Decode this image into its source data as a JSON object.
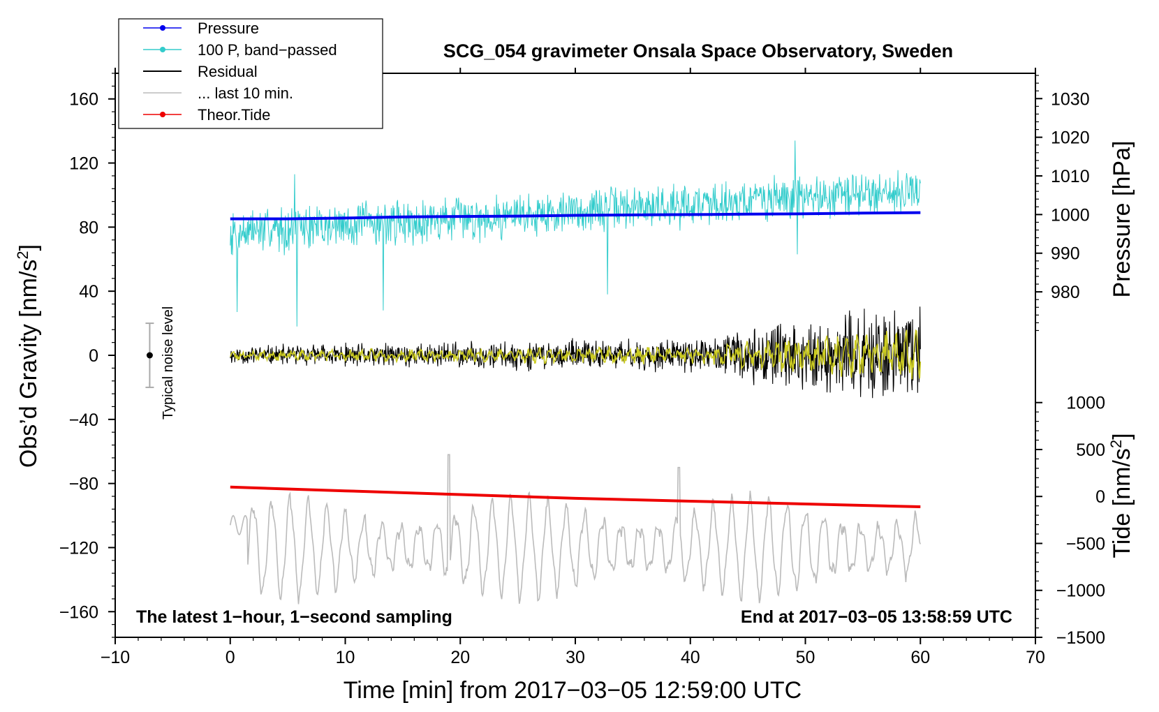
{
  "chart_data": {
    "type": "line",
    "title": "SCG_054 gravimeter Onsala Space Observatory, Sweden",
    "xlabel": "Time [min] from 2017−03−05 12:59:00 UTC",
    "ylabel_left": "Obs’d Gravity [nm/s²]",
    "ylabel_right_top": "Pressure [hPa]",
    "ylabel_right_bottom": "Tide [nm/s²]",
    "annotation_left": "The latest 1−hour, 1−second sampling",
    "annotation_right": "End at 2017−03−05 13:58:59 UTC",
    "noise_label": "Typical noise level",
    "noise_level": {
      "x": -7,
      "center": 0,
      "half_range": 20
    },
    "xlim": [
      -10,
      70
    ],
    "ylim_left": [
      -176,
      176
    ],
    "x_ticks": [
      -10,
      0,
      10,
      20,
      30,
      40,
      50,
      60,
      70
    ],
    "x_tick_labels": [
      "−10",
      "0",
      "10",
      "20",
      "30",
      "40",
      "50",
      "60",
      "70"
    ],
    "y_left_ticks": [
      -160,
      -120,
      -80,
      -40,
      0,
      40,
      80,
      120,
      160
    ],
    "y_left_tick_labels": [
      "−160",
      "−120",
      "−80",
      "−40",
      "0",
      "40",
      "80",
      "120",
      "160"
    ],
    "pressure_axis": {
      "ticks": [
        980,
        990,
        1000,
        1010,
        1020,
        1030
      ],
      "tick_labels": [
        "980",
        "990",
        "1000",
        "1010",
        "1020",
        "1030"
      ],
      "left_equivalent": {
        "hpa_a": 980,
        "gravity_a": 39.6,
        "hpa_b": 1030,
        "gravity_b": 160.2
      }
    },
    "tide_axis": {
      "ticks": [
        -1500,
        -1000,
        -500,
        0,
        500,
        1000
      ],
      "tick_labels": [
        "−1500",
        "−1000",
        "−500",
        "0",
        "500",
        "1000"
      ],
      "left_equivalent": {
        "tide_a": -1500,
        "gravity_a": -176,
        "tide_b": 1000,
        "gravity_b": -29.5
      }
    },
    "legend": [
      {
        "label": "Pressure",
        "color": "#0000ee",
        "marker": true
      },
      {
        "label": "100 P, band−passed",
        "color": "#33cccc",
        "marker": true
      },
      {
        "label": "Residual",
        "color": "#000000",
        "marker": false
      },
      {
        "label": "... last 10 min.",
        "color": "#bbbbbb",
        "marker": false
      },
      {
        "label": "Theor.Tide",
        "color": "#ee0000",
        "marker": true
      }
    ],
    "series": [
      {
        "name": "Pressure",
        "axis": "pressure_hpa",
        "color": "#0000ee",
        "x": [
          0,
          5,
          10,
          15,
          20,
          25,
          30,
          35,
          40,
          45,
          50,
          55,
          60
        ],
        "values": [
          998.9,
          998.9,
          999.1,
          999.4,
          999.5,
          999.6,
          999.8,
          999.9,
          1000.0,
          1000.1,
          1000.2,
          1000.4,
          1000.5
        ]
      },
      {
        "name": "Theor.Tide",
        "axis": "tide_nm_s2",
        "color": "#ee0000",
        "x": [
          0,
          10,
          20,
          30,
          40,
          50,
          60
        ],
        "values": [
          100,
          60,
          20,
          -20,
          -50,
          -80,
          -110
        ]
      },
      {
        "name": "100 P, band−passed",
        "axis": "gravity",
        "color": "#33cccc",
        "baseline": 77,
        "baseline_end": 103,
        "noise_amplitude_start": 17,
        "noise_amplitude_end": 16,
        "spikes": [
          {
            "x": 0.6,
            "value": 27
          },
          {
            "x": 5.6,
            "value": 113
          },
          {
            "x": 5.8,
            "value": 18
          },
          {
            "x": 13.3,
            "value": 28
          },
          {
            "x": 32.8,
            "value": 38
          },
          {
            "x": 49.1,
            "value": 134
          },
          {
            "x": 49.3,
            "value": 63
          }
        ]
      },
      {
        "name": "Residual",
        "axis": "gravity",
        "color": "#000000",
        "baseline": 0,
        "noise_amplitude_start": 7,
        "noise_amplitude_end": 38
      },
      {
        "name": "... last 10 min.",
        "axis": "gravity",
        "color": "#bbbbbb",
        "baseline": -120,
        "oscillation_amplitude": 30,
        "period_min": 1.6,
        "peaks": [
          {
            "x": 19.0,
            "value": -62
          },
          {
            "x": 39.0,
            "value": -70
          }
        ]
      },
      {
        "name": "Residual (smoothed)",
        "axis": "gravity",
        "color": "#cccc22",
        "baseline": 0,
        "noise_amplitude_start": 3,
        "noise_amplitude_end": 16
      }
    ]
  }
}
